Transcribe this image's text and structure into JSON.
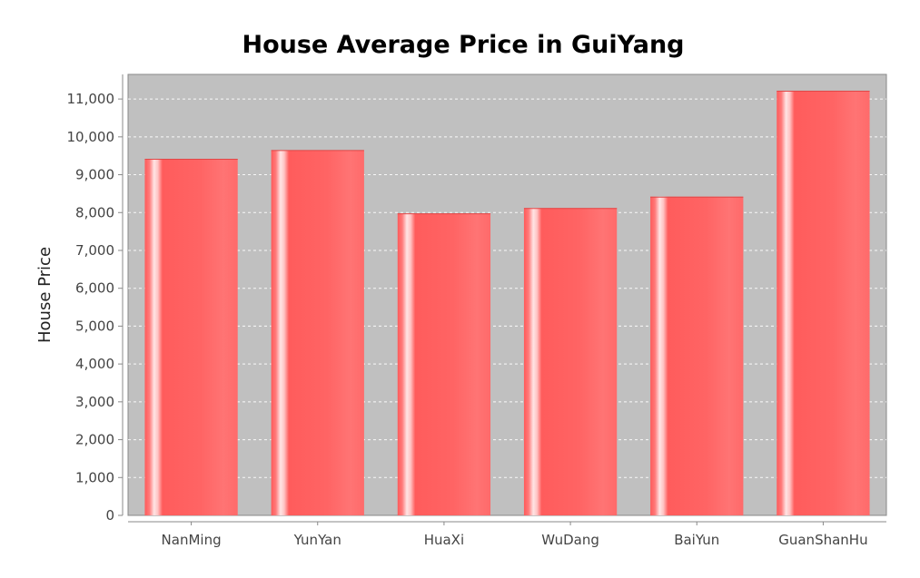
{
  "chart_data": {
    "type": "bar",
    "title": "House Average Price in GuiYang",
    "xlabel": "",
    "ylabel": "House Price",
    "categories": [
      "NanMing",
      "YunYan",
      "HuaXi",
      "WuDang",
      "BaiYun",
      "GuanShanHu"
    ],
    "values": [
      9420,
      9650,
      7980,
      8120,
      8420,
      11220
    ],
    "ylim": [
      0,
      11650
    ],
    "yticks": [
      0,
      1000,
      2000,
      3000,
      4000,
      5000,
      6000,
      7000,
      8000,
      9000,
      10000,
      11000
    ],
    "ytick_labels": [
      "0",
      "1,000",
      "2,000",
      "3,000",
      "4,000",
      "5,000",
      "6,000",
      "7,000",
      "8,000",
      "9,000",
      "10,000",
      "11,000"
    ],
    "grid": true,
    "legend": "none",
    "colors": {
      "bar": "#ff5555",
      "plot_background": "#c0c0c0",
      "gridline": "#ffffff"
    }
  }
}
